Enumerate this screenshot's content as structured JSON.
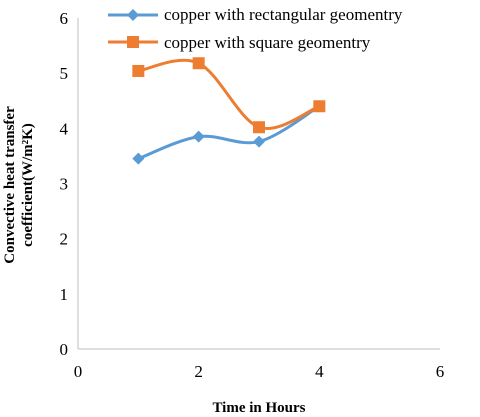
{
  "chart_data": {
    "type": "line",
    "smooth": true,
    "title": "",
    "xlabel": "Time in Hours",
    "ylabel_lines": [
      "Convective heat transfer",
      "coefficient(W/m²K)"
    ],
    "xlim": [
      0,
      6
    ],
    "ylim": [
      0,
      6
    ],
    "xticks": [
      "0",
      "2",
      "4",
      "6"
    ],
    "yticks": [
      "0",
      "1",
      "2",
      "3",
      "4",
      "5",
      "6"
    ],
    "grid": false,
    "legend_position": "top",
    "series": [
      {
        "name": "copper with rectangular geomentry",
        "color": "#5b9bd5",
        "marker": "diamond",
        "x": [
          1,
          2,
          3,
          4
        ],
        "y": [
          3.45,
          3.85,
          3.76,
          4.4
        ]
      },
      {
        "name": "copper with square geomentry",
        "color": "#ed7d31",
        "marker": "square",
        "x": [
          1,
          2,
          3,
          4
        ],
        "y": [
          5.04,
          5.18,
          4.02,
          4.4
        ]
      }
    ]
  }
}
